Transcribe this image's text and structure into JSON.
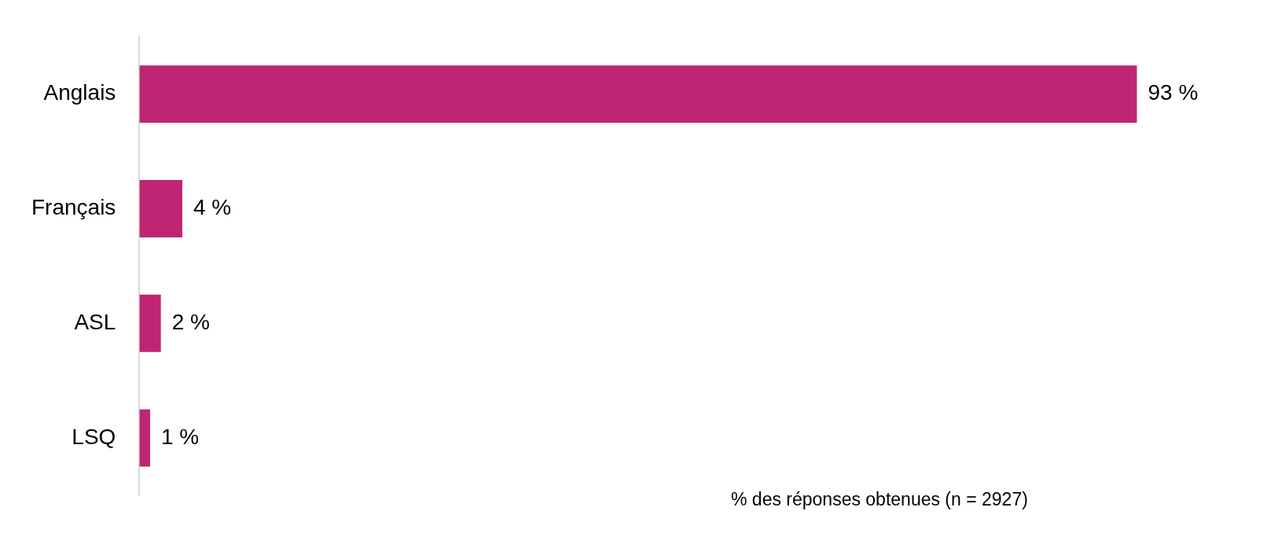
{
  "chart_data": {
    "type": "bar",
    "orientation": "horizontal",
    "categories": [
      "Anglais",
      "Français",
      "ASL",
      "LSQ"
    ],
    "values": [
      93,
      4,
      2,
      1
    ],
    "color": "#bf2572",
    "value_labels": [
      "93 %",
      "4 %",
      "2 %",
      "1 %"
    ],
    "legend": false,
    "tick_labels": "y",
    "annotations": [
      "% des réponses obtenues (n = 2927)"
    ]
  }
}
